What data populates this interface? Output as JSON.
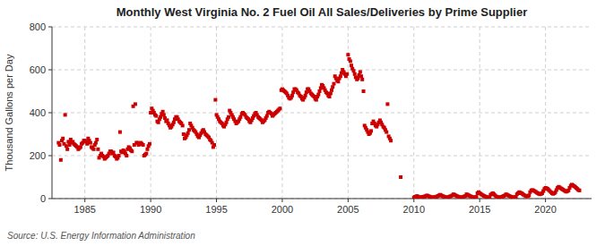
{
  "chart_data": {
    "type": "scatter",
    "title": "Monthly West Virginia No. 2 Fuel Oil All Sales/Deliveries by Prime Supplier",
    "ylabel": "Thousand Gallons per Day",
    "annotations": [
      "Source: U.S. Energy Information Administration"
    ],
    "color": "#cc0000",
    "marker": "square",
    "grid": true,
    "xlim": [
      1982.5,
      2023.5
    ],
    "ylim": [
      0,
      800
    ],
    "xticks": [
      1985,
      1990,
      1995,
      2000,
      2005,
      2010,
      2015,
      2020
    ],
    "yticks": [
      0,
      200,
      400,
      600,
      800
    ],
    "x": [
      1983.0,
      1983.08,
      1983.17,
      1983.25,
      1983.33,
      1983.42,
      1983.5,
      1983.58,
      1983.67,
      1983.75,
      1983.83,
      1983.92,
      1984.0,
      1984.08,
      1984.17,
      1984.25,
      1984.33,
      1984.42,
      1984.5,
      1984.58,
      1984.67,
      1984.75,
      1984.83,
      1984.92,
      1985.0,
      1985.08,
      1985.17,
      1985.25,
      1985.33,
      1985.42,
      1985.5,
      1985.58,
      1985.67,
      1985.75,
      1985.83,
      1985.92,
      1986.0,
      1986.08,
      1986.17,
      1986.25,
      1986.33,
      1986.42,
      1986.5,
      1986.58,
      1986.67,
      1986.75,
      1986.83,
      1986.92,
      1987.0,
      1987.08,
      1987.17,
      1987.25,
      1987.33,
      1987.42,
      1987.5,
      1987.58,
      1987.67,
      1987.75,
      1987.83,
      1987.92,
      1988.0,
      1988.08,
      1988.17,
      1988.25,
      1988.33,
      1988.42,
      1988.5,
      1988.58,
      1988.67,
      1988.75,
      1988.83,
      1988.92,
      1989.0,
      1989.08,
      1989.17,
      1989.25,
      1989.33,
      1989.42,
      1989.5,
      1989.58,
      1989.67,
      1989.75,
      1989.83,
      1989.92,
      1990.0,
      1990.08,
      1990.17,
      1990.25,
      1990.33,
      1990.42,
      1990.5,
      1990.58,
      1990.67,
      1990.75,
      1990.83,
      1990.92,
      1991.0,
      1991.08,
      1991.17,
      1991.25,
      1991.33,
      1991.42,
      1991.5,
      1991.58,
      1991.67,
      1991.75,
      1991.83,
      1991.92,
      1992.0,
      1992.08,
      1992.17,
      1992.25,
      1992.33,
      1992.42,
      1992.5,
      1992.58,
      1992.67,
      1992.75,
      1992.83,
      1992.92,
      1993.0,
      1993.08,
      1993.17,
      1993.25,
      1993.33,
      1993.42,
      1993.5,
      1993.58,
      1993.67,
      1993.75,
      1993.83,
      1993.92,
      1994.0,
      1994.08,
      1994.17,
      1994.25,
      1994.33,
      1994.42,
      1994.5,
      1994.58,
      1994.67,
      1994.75,
      1994.83,
      1994.92,
      1995.0,
      1995.08,
      1995.17,
      1995.25,
      1995.33,
      1995.42,
      1995.5,
      1995.58,
      1995.67,
      1995.75,
      1995.83,
      1995.92,
      1996.0,
      1996.08,
      1996.17,
      1996.25,
      1996.33,
      1996.42,
      1996.5,
      1996.58,
      1996.67,
      1996.75,
      1996.83,
      1996.92,
      1997.0,
      1997.08,
      1997.17,
      1997.25,
      1997.33,
      1997.42,
      1997.5,
      1997.58,
      1997.67,
      1997.75,
      1997.83,
      1997.92,
      1998.0,
      1998.08,
      1998.17,
      1998.25,
      1998.33,
      1998.42,
      1998.5,
      1998.58,
      1998.67,
      1998.75,
      1998.83,
      1998.92,
      1999.0,
      1999.08,
      1999.17,
      1999.25,
      1999.33,
      1999.42,
      1999.5,
      1999.58,
      1999.67,
      1999.75,
      1999.83,
      1999.92,
      2000.0,
      2000.08,
      2000.17,
      2000.25,
      2000.33,
      2000.42,
      2000.5,
      2000.58,
      2000.67,
      2000.75,
      2000.83,
      2000.92,
      2001.0,
      2001.08,
      2001.17,
      2001.25,
      2001.33,
      2001.42,
      2001.5,
      2001.58,
      2001.67,
      2001.75,
      2001.83,
      2001.92,
      2002.0,
      2002.08,
      2002.17,
      2002.25,
      2002.33,
      2002.42,
      2002.5,
      2002.58,
      2002.67,
      2002.75,
      2002.83,
      2002.92,
      2003.0,
      2003.08,
      2003.17,
      2003.25,
      2003.33,
      2003.42,
      2003.5,
      2003.58,
      2003.67,
      2003.75,
      2003.83,
      2003.92,
      2004.0,
      2004.08,
      2004.17,
      2004.25,
      2004.33,
      2004.42,
      2004.5,
      2004.58,
      2004.67,
      2004.75,
      2004.83,
      2004.92,
      2005.0,
      2005.08,
      2005.17,
      2005.25,
      2005.33,
      2005.42,
      2005.5,
      2005.58,
      2005.67,
      2005.75,
      2005.83,
      2005.92,
      2006.0,
      2006.08,
      2006.17,
      2006.25,
      2006.33,
      2006.42,
      2006.5,
      2006.58,
      2006.67,
      2006.75,
      2006.83,
      2006.92,
      2007.0,
      2007.08,
      2007.17,
      2007.25,
      2007.33,
      2007.42,
      2007.5,
      2007.58,
      2007.67,
      2007.75,
      2007.83,
      2007.92,
      2008.0,
      2008.08,
      2008.17,
      2008.25,
      2009.0,
      2010.0,
      2010.08,
      2010.17,
      2010.25,
      2010.33,
      2010.42,
      2010.5,
      2010.58,
      2010.67,
      2010.75,
      2010.83,
      2010.92,
      2011.0,
      2011.08,
      2011.17,
      2011.25,
      2011.33,
      2011.42,
      2011.5,
      2011.58,
      2011.67,
      2011.75,
      2011.83,
      2011.92,
      2012.0,
      2012.08,
      2012.17,
      2012.25,
      2012.33,
      2012.42,
      2012.5,
      2012.58,
      2012.67,
      2012.75,
      2012.83,
      2012.92,
      2013.0,
      2013.08,
      2013.17,
      2013.25,
      2013.33,
      2013.42,
      2013.5,
      2013.58,
      2013.67,
      2013.75,
      2013.83,
      2013.92,
      2014.0,
      2014.08,
      2014.17,
      2014.25,
      2014.33,
      2014.42,
      2014.5,
      2014.58,
      2014.67,
      2014.75,
      2014.83,
      2014.92,
      2015.0,
      2015.08,
      2015.17,
      2015.25,
      2015.33,
      2015.42,
      2015.5,
      2015.58,
      2015.67,
      2015.75,
      2015.83,
      2015.92,
      2016.0,
      2016.08,
      2016.17,
      2016.25,
      2016.33,
      2016.42,
      2016.5,
      2016.58,
      2016.67,
      2016.75,
      2016.83,
      2016.92,
      2017.0,
      2017.08,
      2017.17,
      2017.25,
      2017.33,
      2017.42,
      2017.5,
      2017.58,
      2017.67,
      2017.75,
      2017.83,
      2017.92,
      2018.0,
      2018.08,
      2018.17,
      2018.25,
      2018.33,
      2018.42,
      2018.5,
      2018.58,
      2018.67,
      2018.75,
      2018.83,
      2018.92,
      2019.0,
      2019.08,
      2019.17,
      2019.25,
      2019.33,
      2019.42,
      2019.5,
      2019.58,
      2019.67,
      2019.75,
      2019.83,
      2019.92,
      2020.0,
      2020.08,
      2020.17,
      2020.25,
      2020.33,
      2020.42,
      2020.5,
      2020.58,
      2020.67,
      2020.75,
      2020.83,
      2020.92,
      2021.0,
      2021.08,
      2021.17,
      2021.25,
      2021.33,
      2021.42,
      2021.5,
      2021.58,
      2021.67,
      2021.75,
      2021.83,
      2021.92,
      2022.0,
      2022.08,
      2022.17,
      2022.25,
      2022.33,
      2022.42,
      2022.5,
      2022.58
    ],
    "values": [
      260,
      250,
      180,
      270,
      280,
      255,
      390,
      245,
      230,
      265,
      250,
      275,
      260,
      265,
      255,
      250,
      245,
      240,
      230,
      235,
      240,
      255,
      260,
      270,
      270,
      265,
      255,
      280,
      270,
      260,
      240,
      235,
      230,
      250,
      260,
      275,
      230,
      190,
      200,
      210,
      200,
      195,
      185,
      190,
      195,
      200,
      210,
      220,
      220,
      210,
      215,
      200,
      195,
      185,
      190,
      200,
      310,
      220,
      215,
      225,
      220,
      210,
      200,
      230,
      240,
      235,
      225,
      220,
      430,
      250,
      440,
      260,
      260,
      250,
      255,
      260,
      255,
      250,
      200,
      205,
      210,
      230,
      245,
      255,
      400,
      420,
      410,
      400,
      390,
      385,
      360,
      355,
      370,
      380,
      395,
      405,
      390,
      375,
      360,
      365,
      350,
      340,
      330,
      335,
      345,
      355,
      370,
      380,
      380,
      370,
      360,
      355,
      350,
      340,
      300,
      280,
      285,
      295,
      305,
      320,
      350,
      340,
      330,
      320,
      315,
      310,
      300,
      290,
      285,
      295,
      305,
      315,
      320,
      310,
      300,
      295,
      290,
      285,
      275,
      270,
      260,
      240,
      250,
      460,
      390,
      380,
      370,
      360,
      355,
      350,
      340,
      335,
      345,
      355,
      370,
      380,
      410,
      400,
      390,
      380,
      370,
      360,
      350,
      355,
      360,
      370,
      380,
      395,
      400,
      395,
      390,
      380,
      375,
      370,
      360,
      355,
      365,
      375,
      385,
      395,
      400,
      390,
      380,
      375,
      370,
      365,
      355,
      360,
      365,
      375,
      385,
      400,
      405,
      400,
      395,
      385,
      390,
      395,
      400,
      405,
      410,
      415,
      420,
      505,
      510,
      505,
      500,
      495,
      490,
      480,
      470,
      465,
      470,
      480,
      495,
      510,
      510,
      505,
      495,
      490,
      480,
      475,
      465,
      460,
      470,
      480,
      495,
      510,
      510,
      500,
      490,
      485,
      480,
      475,
      465,
      460,
      475,
      485,
      500,
      515,
      530,
      525,
      515,
      505,
      495,
      490,
      480,
      475,
      490,
      505,
      520,
      535,
      570,
      560,
      550,
      545,
      560,
      570,
      585,
      600,
      590,
      580,
      570,
      580,
      670,
      650,
      640,
      620,
      605,
      595,
      580,
      565,
      555,
      560,
      575,
      590,
      570,
      555,
      500,
      340,
      330,
      320,
      310,
      300,
      305,
      315,
      350,
      360,
      350,
      340,
      335,
      345,
      355,
      365,
      355,
      345,
      335,
      330,
      320,
      310,
      440,
      290,
      280,
      270,
      100,
      5,
      8,
      10,
      12,
      8,
      5,
      6,
      7,
      8,
      9,
      10,
      12,
      15,
      12,
      10,
      8,
      6,
      5,
      6,
      7,
      8,
      10,
      12,
      15,
      18,
      15,
      12,
      10,
      8,
      6,
      5,
      6,
      8,
      10,
      12,
      15,
      20,
      18,
      15,
      12,
      10,
      8,
      6,
      5,
      6,
      8,
      10,
      12,
      20,
      18,
      15,
      12,
      10,
      8,
      6,
      5,
      6,
      8,
      25,
      30,
      25,
      22,
      18,
      15,
      12,
      10,
      8,
      6,
      5,
      6,
      18,
      22,
      25,
      20,
      15,
      10,
      8,
      6,
      5,
      6,
      8,
      10,
      12,
      15,
      20,
      18,
      15,
      12,
      10,
      8,
      6,
      5,
      6,
      8,
      20,
      25,
      30,
      28,
      25,
      22,
      18,
      15,
      12,
      10,
      12,
      15,
      30,
      38,
      40,
      38,
      35,
      32,
      28,
      25,
      22,
      20,
      22,
      25,
      35,
      45,
      50,
      48,
      45,
      40,
      35,
      30,
      25,
      22,
      25,
      30,
      40,
      50,
      55,
      52,
      48,
      45,
      42,
      38,
      35,
      32,
      35,
      38,
      50,
      60,
      65,
      62,
      58,
      55,
      50,
      45,
      40,
      38
    ]
  }
}
